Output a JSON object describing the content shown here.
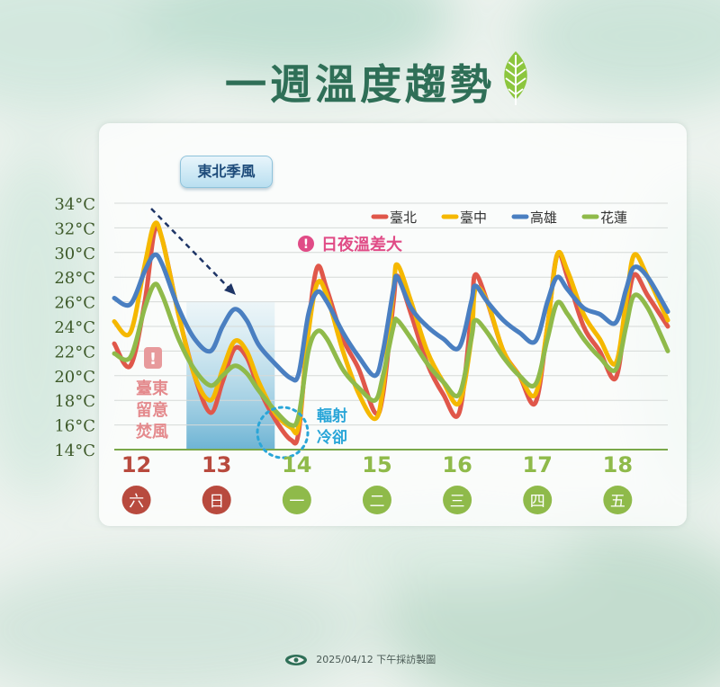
{
  "title": "一週溫度趨勢",
  "footer": "2025/04/12 下午採訪製圖",
  "annotations": {
    "monsoon": "東北季風",
    "diurnal": "日夜溫差大",
    "foehn": [
      "臺東",
      "留意",
      "焚風"
    ],
    "radiation": [
      "輻射",
      "冷卻"
    ]
  },
  "colors": {
    "title": "#2f6f57",
    "taipei": "#e0574a",
    "taichung": "#f5b800",
    "kaohsiung": "#4a7fc1",
    "hualien": "#8fba4a",
    "weekend": "#b84a3e",
    "weekday": "#8fba4a",
    "diurnal": "#e04b86",
    "radiation": "#2aa6d8"
  },
  "chart_data": {
    "type": "line",
    "y_ticks": [
      "34°C",
      "32°C",
      "30°C",
      "28°C",
      "26°C",
      "24°C",
      "22°C",
      "20°C",
      "18°C",
      "16°C",
      "14°C"
    ],
    "ylim": [
      14,
      34
    ],
    "xlim": [
      11.5,
      18.4
    ],
    "legend_position": "top-right",
    "days": [
      {
        "date": "12",
        "weekday": "六",
        "weekend": true
      },
      {
        "date": "13",
        "weekday": "日",
        "weekend": true
      },
      {
        "date": "14",
        "weekday": "一",
        "weekend": false
      },
      {
        "date": "15",
        "weekday": "二",
        "weekend": false
      },
      {
        "date": "16",
        "weekday": "三",
        "weekend": false
      },
      {
        "date": "17",
        "weekday": "四",
        "weekend": false
      },
      {
        "date": "18",
        "weekday": "五",
        "weekend": false
      }
    ],
    "day_positions": [
      12,
      13,
      14,
      15,
      16,
      17,
      18
    ],
    "highlight_range": [
      12.4,
      13.5
    ],
    "series": [
      {
        "name": "臺北",
        "color": "#e0574a",
        "points": [
          [
            11.5,
            22.6
          ],
          [
            11.7,
            20.8
          ],
          [
            11.88,
            26
          ],
          [
            12,
            31.7
          ],
          [
            12.1,
            31
          ],
          [
            12.3,
            25
          ],
          [
            12.5,
            20
          ],
          [
            12.7,
            17
          ],
          [
            12.85,
            19.5
          ],
          [
            13,
            22.2
          ],
          [
            13.15,
            21.5
          ],
          [
            13.3,
            19
          ],
          [
            13.5,
            16.5
          ],
          [
            13.7,
            14.8
          ],
          [
            13.8,
            15.5
          ],
          [
            13.92,
            24
          ],
          [
            14.03,
            28.8
          ],
          [
            14.15,
            27
          ],
          [
            14.35,
            23
          ],
          [
            14.55,
            20.5
          ],
          [
            14.75,
            17
          ],
          [
            14.85,
            18.5
          ],
          [
            14.98,
            26
          ],
          [
            15.03,
            28.1
          ],
          [
            15.2,
            25
          ],
          [
            15.4,
            21
          ],
          [
            15.6,
            18.5
          ],
          [
            15.8,
            17
          ],
          [
            15.95,
            25
          ],
          [
            16,
            28.2
          ],
          [
            16.15,
            26
          ],
          [
            16.35,
            22
          ],
          [
            16.55,
            20
          ],
          [
            16.75,
            17.8
          ],
          [
            16.9,
            24
          ],
          [
            17.02,
            29.8
          ],
          [
            17.15,
            28
          ],
          [
            17.35,
            24
          ],
          [
            17.55,
            22
          ],
          [
            17.75,
            19.8
          ],
          [
            17.88,
            25
          ],
          [
            17.98,
            28.2
          ],
          [
            18.15,
            26.5
          ],
          [
            18.4,
            24
          ]
        ]
      },
      {
        "name": "臺中",
        "color": "#f5b800",
        "points": [
          [
            11.5,
            24.4
          ],
          [
            11.7,
            23.5
          ],
          [
            11.88,
            29
          ],
          [
            12,
            32.3
          ],
          [
            12.1,
            31
          ],
          [
            12.3,
            25
          ],
          [
            12.5,
            20
          ],
          [
            12.7,
            18
          ],
          [
            12.85,
            20.5
          ],
          [
            13,
            22.8
          ],
          [
            13.15,
            22
          ],
          [
            13.3,
            19.5
          ],
          [
            13.5,
            17
          ],
          [
            13.7,
            15.8
          ],
          [
            13.8,
            16
          ],
          [
            13.92,
            23.5
          ],
          [
            14.03,
            27.5
          ],
          [
            14.15,
            26.5
          ],
          [
            14.35,
            22
          ],
          [
            14.55,
            18.5
          ],
          [
            14.75,
            16.5
          ],
          [
            14.85,
            19
          ],
          [
            14.98,
            27
          ],
          [
            15.03,
            29
          ],
          [
            15.2,
            26
          ],
          [
            15.4,
            22
          ],
          [
            15.6,
            19.5
          ],
          [
            15.8,
            17.8
          ],
          [
            15.95,
            23
          ],
          [
            16,
            27
          ],
          [
            16.15,
            26
          ],
          [
            16.35,
            22
          ],
          [
            16.55,
            20
          ],
          [
            16.75,
            18.5
          ],
          [
            16.9,
            24
          ],
          [
            17.02,
            29.8
          ],
          [
            17.15,
            28.5
          ],
          [
            17.35,
            25
          ],
          [
            17.55,
            23
          ],
          [
            17.75,
            21
          ],
          [
            17.88,
            26
          ],
          [
            17.98,
            29.8
          ],
          [
            18.15,
            28
          ],
          [
            18.4,
            24.5
          ]
        ]
      },
      {
        "name": "高雄",
        "color": "#4a7fc1",
        "points": [
          [
            11.5,
            26.3
          ],
          [
            11.7,
            25.8
          ],
          [
            11.88,
            28.5
          ],
          [
            12,
            29.8
          ],
          [
            12.1,
            29
          ],
          [
            12.3,
            25.5
          ],
          [
            12.5,
            23
          ],
          [
            12.7,
            22
          ],
          [
            12.85,
            24
          ],
          [
            13,
            25.4
          ],
          [
            13.15,
            24.5
          ],
          [
            13.3,
            22.5
          ],
          [
            13.5,
            21
          ],
          [
            13.7,
            19.8
          ],
          [
            13.8,
            20.2
          ],
          [
            13.92,
            25
          ],
          [
            14.03,
            26.8
          ],
          [
            14.15,
            26
          ],
          [
            14.35,
            23.5
          ],
          [
            14.55,
            21.5
          ],
          [
            14.75,
            20
          ],
          [
            14.85,
            22
          ],
          [
            14.98,
            27
          ],
          [
            15.03,
            28
          ],
          [
            15.2,
            25.5
          ],
          [
            15.4,
            24
          ],
          [
            15.6,
            23
          ],
          [
            15.8,
            22.3
          ],
          [
            15.95,
            26
          ],
          [
            16,
            27.3
          ],
          [
            16.15,
            26
          ],
          [
            16.35,
            24.5
          ],
          [
            16.55,
            23.5
          ],
          [
            16.75,
            22.8
          ],
          [
            16.9,
            26
          ],
          [
            17.02,
            28
          ],
          [
            17.15,
            27
          ],
          [
            17.35,
            25.5
          ],
          [
            17.55,
            25
          ],
          [
            17.75,
            24.3
          ],
          [
            17.88,
            27
          ],
          [
            17.98,
            28.8
          ],
          [
            18.15,
            28
          ],
          [
            18.4,
            25.2
          ]
        ]
      },
      {
        "name": "花蓮",
        "color": "#8fba4a",
        "points": [
          [
            11.5,
            21.8
          ],
          [
            11.7,
            21.5
          ],
          [
            11.88,
            25.5
          ],
          [
            12,
            27.4
          ],
          [
            12.1,
            26.5
          ],
          [
            12.3,
            23
          ],
          [
            12.5,
            20.5
          ],
          [
            12.7,
            19.2
          ],
          [
            12.85,
            20
          ],
          [
            13,
            20.8
          ],
          [
            13.15,
            20.2
          ],
          [
            13.3,
            18.8
          ],
          [
            13.5,
            17.2
          ],
          [
            13.7,
            16
          ],
          [
            13.8,
            16.8
          ],
          [
            13.92,
            22
          ],
          [
            14.03,
            23.6
          ],
          [
            14.15,
            23
          ],
          [
            14.35,
            20.5
          ],
          [
            14.55,
            19
          ],
          [
            14.75,
            18
          ],
          [
            14.85,
            20
          ],
          [
            14.98,
            24
          ],
          [
            15.03,
            24.5
          ],
          [
            15.2,
            23
          ],
          [
            15.4,
            21
          ],
          [
            15.6,
            19.5
          ],
          [
            15.8,
            18.5
          ],
          [
            15.95,
            23
          ],
          [
            16,
            24.5
          ],
          [
            16.15,
            23.5
          ],
          [
            16.35,
            21.5
          ],
          [
            16.55,
            20
          ],
          [
            16.75,
            19.3
          ],
          [
            16.9,
            23
          ],
          [
            17.02,
            25.9
          ],
          [
            17.15,
            25
          ],
          [
            17.35,
            23
          ],
          [
            17.55,
            21.5
          ],
          [
            17.75,
            20.5
          ],
          [
            17.88,
            24
          ],
          [
            17.98,
            26.5
          ],
          [
            18.15,
            25.5
          ],
          [
            18.4,
            22
          ]
        ]
      }
    ]
  }
}
